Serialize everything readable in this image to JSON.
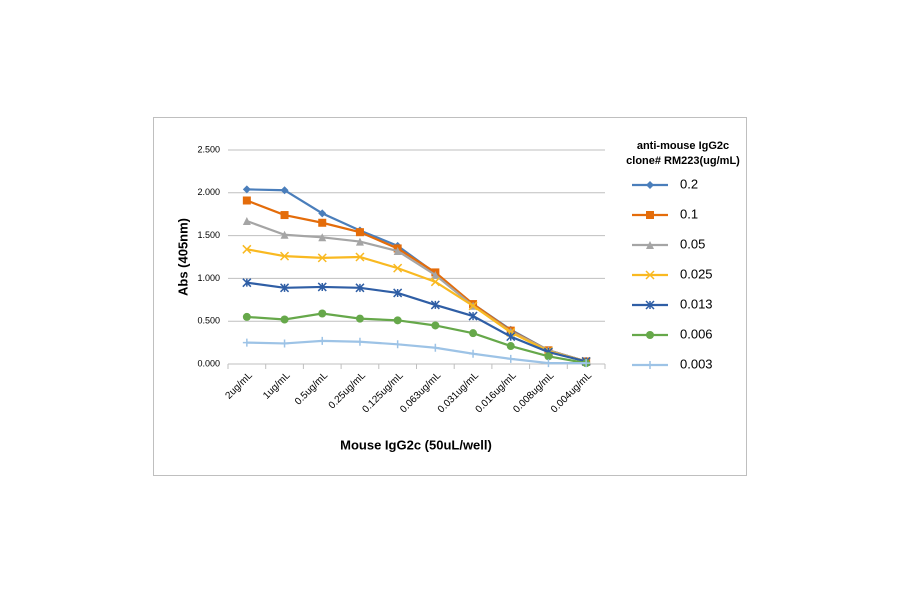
{
  "chart_data": {
    "type": "line",
    "x_label": "Mouse IgG2c (50uL/well)",
    "y_label": "Abs (405nm)",
    "legend_title": [
      "anti-mouse IgG2c",
      "clone# RM223(ug/mL)"
    ],
    "legend_position": "right",
    "grid": true,
    "categories": [
      "2ug/mL",
      "1ug/mL",
      "0.5ug/mL",
      "0.25ug/mL",
      "0.125ug/mL",
      "0.063ug/mL",
      "0.031ug/mL",
      "0.016ug/mL",
      "0.008ug/mL",
      "0.004ug/mL"
    ],
    "ylim": [
      0,
      2.5
    ],
    "yticks": [
      {
        "value": 0,
        "label": "0.000"
      },
      {
        "value": 0.5,
        "label": "0.500"
      },
      {
        "value": 1,
        "label": "1.000"
      },
      {
        "value": 1.5,
        "label": "1.500"
      },
      {
        "value": 2,
        "label": "2.000"
      },
      {
        "value": 2.5,
        "label": "2.500"
      }
    ],
    "series": [
      {
        "name": "0.2",
        "color": "#4a7ebb",
        "marker": "diamond",
        "values": [
          2.04,
          2.03,
          1.76,
          1.56,
          1.38,
          1.06,
          0.7,
          0.4,
          0.16,
          0.03
        ]
      },
      {
        "name": "0.1",
        "color": "#e46c0a",
        "marker": "square",
        "values": [
          1.91,
          1.74,
          1.65,
          1.54,
          1.35,
          1.07,
          0.7,
          0.39,
          0.16,
          0.03
        ]
      },
      {
        "name": "0.05",
        "color": "#a5a5a5",
        "marker": "triangle",
        "values": [
          1.67,
          1.51,
          1.48,
          1.43,
          1.32,
          1.04,
          0.68,
          0.38,
          0.16,
          0.03
        ]
      },
      {
        "name": "0.025",
        "color": "#f9b921",
        "marker": "x",
        "values": [
          1.34,
          1.26,
          1.24,
          1.25,
          1.12,
          0.96,
          0.68,
          0.37,
          0.15,
          0.03
        ]
      },
      {
        "name": "0.013",
        "color": "#2f5ea5",
        "marker": "star",
        "values": [
          0.95,
          0.89,
          0.9,
          0.89,
          0.83,
          0.69,
          0.56,
          0.32,
          0.14,
          0.03
        ]
      },
      {
        "name": "0.006",
        "color": "#66a84a",
        "marker": "circle",
        "values": [
          0.55,
          0.52,
          0.59,
          0.53,
          0.51,
          0.45,
          0.36,
          0.21,
          0.09,
          0.01
        ]
      },
      {
        "name": "0.003",
        "color": "#9dc3e6",
        "marker": "plus",
        "values": [
          0.25,
          0.24,
          0.27,
          0.26,
          0.23,
          0.19,
          0.12,
          0.06,
          0.01,
          0.01
        ]
      }
    ]
  }
}
